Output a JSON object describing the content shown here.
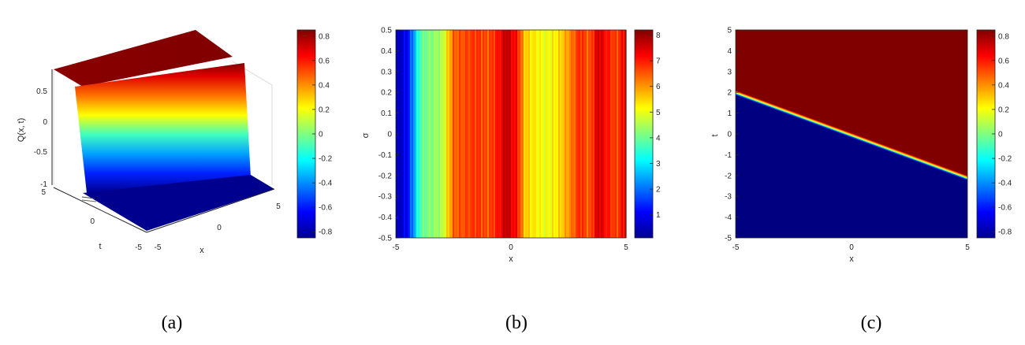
{
  "captions": [
    "(a)",
    "(b)",
    "(c)"
  ],
  "chart_data": [
    {
      "type": "surface",
      "zlabel": "Q(x, t)",
      "xlabel": "x",
      "ylabel": "t",
      "xlim": [
        -5,
        5
      ],
      "ylim": [
        -5,
        5
      ],
      "zlim": [
        -1,
        0.85
      ],
      "x_ticks": [
        "-5",
        "0",
        "5"
      ],
      "y_ticks": [
        "-5",
        "0",
        "5"
      ],
      "z_ticks": [
        "-1",
        "-0.5",
        "0",
        "0.5"
      ],
      "surface_levels": {
        "low": -0.85,
        "high": 0.85
      },
      "colorbar": {
        "range": [
          -0.85,
          0.85
        ],
        "ticks": [
          "-0.8",
          "-0.6",
          "-0.4",
          "-0.2",
          "0",
          "0.2",
          "0.4",
          "0.6",
          "0.8"
        ],
        "colormap": "jet"
      }
    },
    {
      "type": "heatmap",
      "xlabel": "x",
      "ylabel": "σ",
      "xlim": [
        -5,
        5
      ],
      "ylim": [
        -0.5,
        0.5
      ],
      "x_ticks": [
        "-5",
        "0",
        "5"
      ],
      "y_ticks": [
        "-0.5",
        "-0.4",
        "-0.3",
        "-0.2",
        "-0.1",
        "0",
        "0.1",
        "0.2",
        "0.3",
        "0.4",
        "0.5"
      ],
      "profile_x": [
        -5,
        -4.5,
        -4.2,
        -4.0,
        -3.8,
        -3.5,
        -3.0,
        -2.7,
        -2.5,
        -2.0,
        -1.5,
        -1.0,
        -0.5,
        -0.2,
        0,
        0.3,
        0.6,
        1.0,
        1.5,
        2.0,
        2.5,
        3.0,
        3.4,
        3.8,
        4.2,
        4.6,
        5.0
      ],
      "profile_value": [
        0.4,
        1.1,
        2.4,
        3.6,
        4.0,
        4.2,
        4.5,
        5.6,
        6.4,
        6.6,
        6.8,
        6.5,
        7.1,
        7.8,
        7.4,
        7.0,
        5.6,
        5.3,
        5.0,
        5.3,
        6.0,
        6.9,
        6.4,
        7.6,
        7.0,
        6.6,
        7.5
      ],
      "colorbar": {
        "range": [
          0.1,
          8.2
        ],
        "ticks": [
          "1",
          "2",
          "3",
          "4",
          "5",
          "6",
          "7",
          "8"
        ],
        "colormap": "jet"
      }
    },
    {
      "type": "heatmap",
      "xlabel": "x",
      "ylabel": "t",
      "xlim": [
        -5,
        5
      ],
      "ylim": [
        -5,
        5
      ],
      "x_ticks": [
        "-5",
        "0",
        "5"
      ],
      "y_ticks": [
        "-5",
        "-4",
        "-3",
        "-2",
        "-1",
        "0",
        "1",
        "2",
        "3",
        "4",
        "5"
      ],
      "front_line": {
        "x": [
          -5,
          5
        ],
        "t": [
          2.0,
          -2.1
        ]
      },
      "levels": {
        "above": 0.85,
        "below": -0.85
      },
      "colorbar": {
        "range": [
          -0.85,
          0.85
        ],
        "ticks": [
          "-0.8",
          "-0.6",
          "-0.4",
          "-0.2",
          "0",
          "0.2",
          "0.4",
          "0.6",
          "0.8"
        ],
        "colormap": "jet"
      }
    }
  ]
}
